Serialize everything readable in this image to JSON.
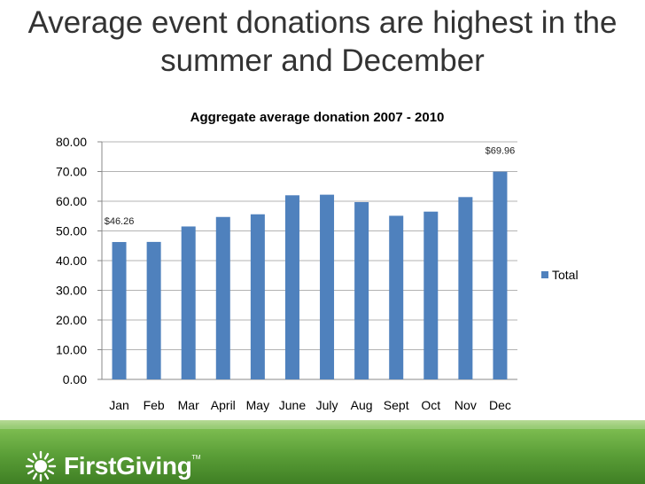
{
  "slide": {
    "title": "Average event donations are highest in the summer and December"
  },
  "chart_data": {
    "type": "bar",
    "title": "Aggregate average donation 2007 - 2010",
    "categories": [
      "Jan",
      "Feb",
      "Mar",
      "April",
      "May",
      "June",
      "July",
      "Aug",
      "Sept",
      "Oct",
      "Nov",
      "Dec"
    ],
    "series": [
      {
        "name": "Total",
        "values": [
          46.26,
          46.3,
          51.5,
          54.7,
          55.6,
          62.0,
          62.2,
          59.7,
          55.1,
          56.5,
          61.4,
          69.96
        ]
      }
    ],
    "data_labels": [
      {
        "category": "Jan",
        "text": "$46.26"
      },
      {
        "category": "Dec",
        "text": "$69.96"
      }
    ],
    "yticks": [
      "0.00",
      "10.00",
      "20.00",
      "30.00",
      "40.00",
      "50.00",
      "60.00",
      "70.00",
      "80.00"
    ],
    "ylim": [
      0,
      80
    ],
    "xlabel": "",
    "ylabel": "",
    "legend_position": "right",
    "grid": true,
    "bar_color": "#4f81bd"
  },
  "footer": {
    "brand": "FirstGiving",
    "trademark": "TM",
    "color": "#5a9e37"
  }
}
